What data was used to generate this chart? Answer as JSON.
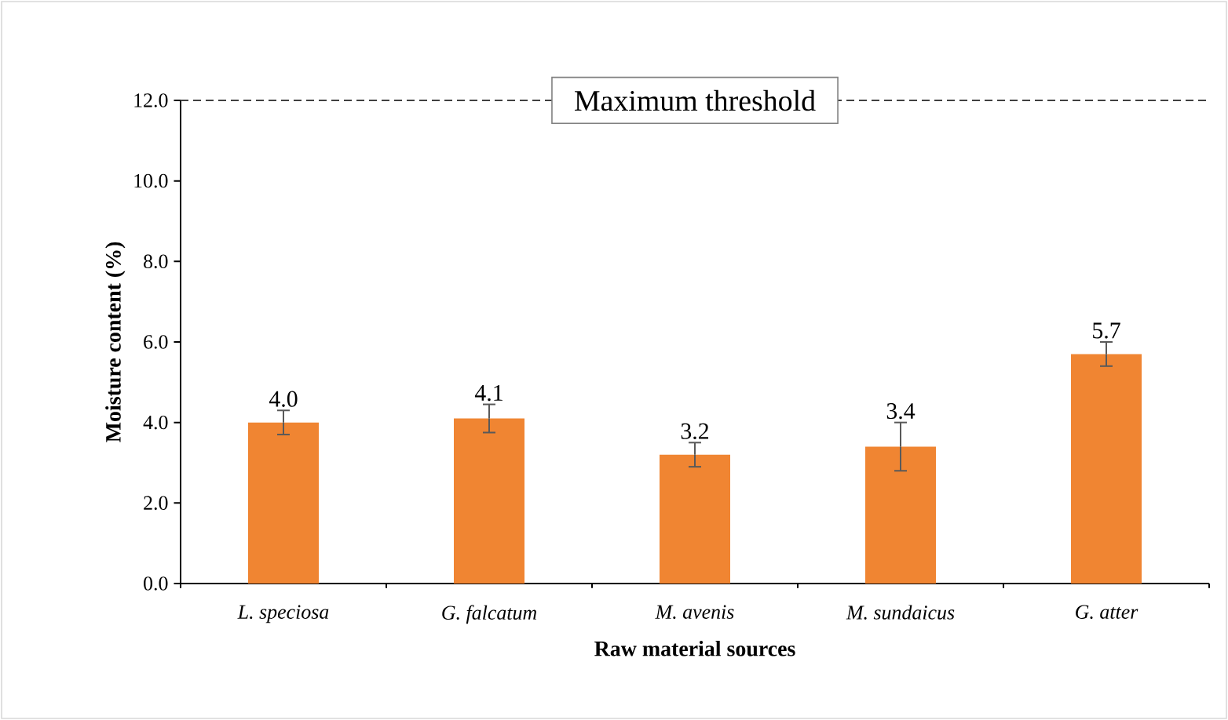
{
  "chart_data": {
    "type": "bar",
    "xlabel": "Raw material sources",
    "ylabel": "Moisture content (%)",
    "categories": [
      "L. speciosa",
      "G. falcatum",
      "M. avenis",
      "M. sundaicus",
      "G. atter"
    ],
    "values": [
      4.0,
      4.1,
      3.2,
      3.4,
      5.7
    ],
    "errors": [
      0.3,
      0.35,
      0.3,
      0.6,
      0.3
    ],
    "value_labels": [
      "4.0",
      "4.1",
      "3.2",
      "3.4",
      "5.7"
    ],
    "color": "#f08532",
    "grid": false,
    "ylim": [
      0,
      12
    ],
    "yticks": [
      {
        "value": 0,
        "label": "0.0"
      },
      {
        "value": 2,
        "label": "2.0"
      },
      {
        "value": 4,
        "label": "4.0"
      },
      {
        "value": 6,
        "label": "6.0"
      },
      {
        "value": 8,
        "label": "8.0"
      },
      {
        "value": 10,
        "label": "10.0"
      },
      {
        "value": 12,
        "label": "12.0"
      }
    ],
    "ref_lines": [
      {
        "axis": "y",
        "value": 12,
        "label": "Maximum threshold",
        "color": "#404040",
        "line_style": "dashed"
      }
    ]
  }
}
